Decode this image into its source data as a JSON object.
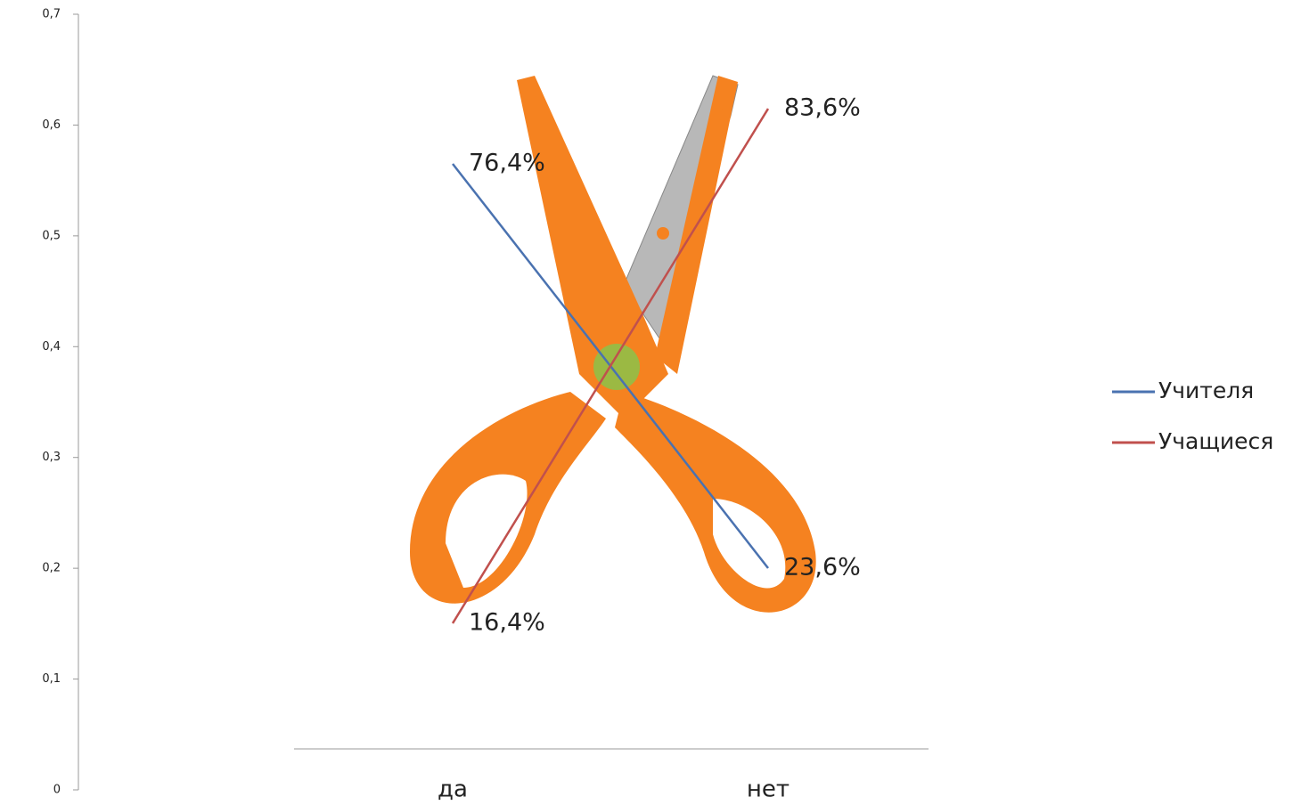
{
  "chart_data": {
    "type": "line",
    "categories": [
      "да",
      "нет"
    ],
    "series": [
      {
        "name": "Учителя",
        "color": "#4a72b0",
        "values": [
          0.764,
          0.236
        ],
        "value_labels": [
          "76,4%",
          "23,6%"
        ],
        "axis": "y2"
      },
      {
        "name": "Учащиеся",
        "color": "#c0504d",
        "values": [
          0.164,
          0.836
        ],
        "value_labels": [
          "16,4%",
          "83,6%"
        ],
        "axis": "y2"
      }
    ],
    "ylim": [
      0,
      0.7
    ],
    "yticks": [
      0,
      {
        "value": 0.1,
        "label": "0,1"
      },
      {
        "value": 0.2,
        "label": "0,2"
      },
      {
        "value": 0.3,
        "label": "0,3"
      },
      {
        "value": 0.4,
        "label": "0,4"
      },
      {
        "value": 0.5,
        "label": "0,5"
      },
      {
        "value": 0.6,
        "label": "0,6"
      },
      {
        "value": 0.7,
        "label": "0,7"
      }
    ],
    "y2lim": [
      0,
      1
    ],
    "legend": "right"
  }
}
